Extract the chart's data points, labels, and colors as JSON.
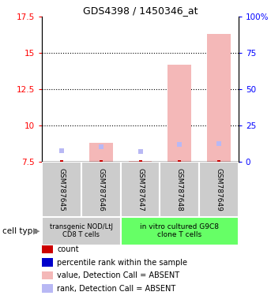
{
  "title": "GDS4398 / 1450346_at",
  "samples": [
    "GSM787645",
    "GSM787646",
    "GSM787647",
    "GSM787648",
    "GSM787649"
  ],
  "ylim_left": [
    7.5,
    17.5
  ],
  "ylim_right": [
    0,
    100
  ],
  "yticks_left": [
    7.5,
    10.0,
    12.5,
    15.0,
    17.5
  ],
  "ytick_labels_left": [
    "7.5",
    "10",
    "12.5",
    "15",
    "17.5"
  ],
  "yticks_right": [
    0,
    25,
    50,
    75,
    100
  ],
  "ytick_labels_right": [
    "0",
    "25",
    "50",
    "75",
    "100%"
  ],
  "bar_values": [
    7.55,
    8.8,
    7.6,
    14.2,
    16.3
  ],
  "rank_values": [
    8.3,
    8.55,
    8.25,
    8.7,
    8.75
  ],
  "bar_color_absent": "#f4b8b8",
  "rank_color_absent": "#b8b8f4",
  "count_color": "#cc0000",
  "rank_dot_color": "#0000cc",
  "bar_bottom": 7.5,
  "group1": {
    "label": "transgenic NOD/LtJ\nCD8 T cells",
    "samples_idx": [
      0,
      1
    ],
    "color": "#cccccc"
  },
  "group2": {
    "label": "in vitro cultured G9C8\nclone T cells",
    "samples_idx": [
      2,
      3,
      4
    ],
    "color": "#66ff66"
  },
  "cell_type_label": "cell type",
  "legend_items": [
    {
      "color": "#cc0000",
      "label": "count"
    },
    {
      "color": "#0000cc",
      "label": "percentile rank within the sample"
    },
    {
      "color": "#f4b8b8",
      "label": "value, Detection Call = ABSENT"
    },
    {
      "color": "#b8b8f4",
      "label": "rank, Detection Call = ABSENT"
    }
  ],
  "bar_width": 0.6,
  "background_color": "#ffffff",
  "fig_width": 3.43,
  "fig_height": 3.84,
  "dpi": 100
}
